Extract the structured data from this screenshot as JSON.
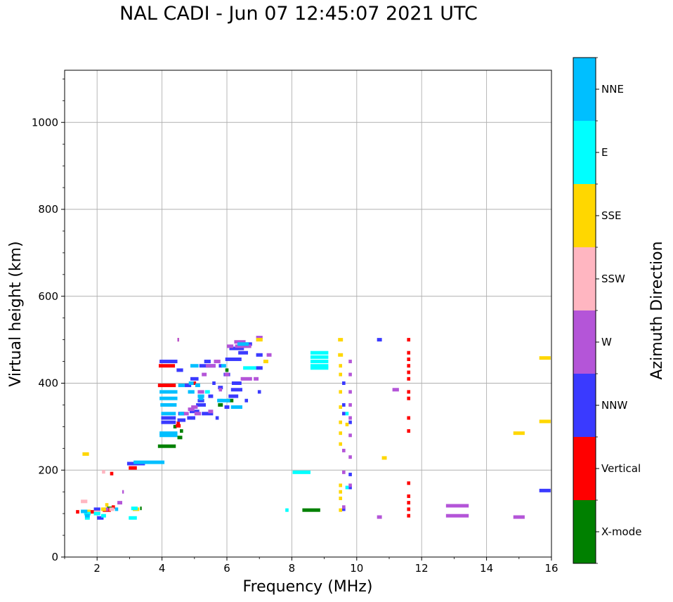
{
  "chart_data": {
    "type": "scatter",
    "title": "NAL CADI - Jun 07 12:45:07 2021 UTC",
    "xlabel": "Frequency (MHz)",
    "ylabel": "Virtual height (km)",
    "xlim": [
      1,
      16
    ],
    "ylim": [
      0,
      1120
    ],
    "xticks": [
      2,
      4,
      6,
      8,
      10,
      12,
      14,
      16
    ],
    "yticks": [
      0,
      200,
      400,
      600,
      800,
      1000
    ],
    "grid": true,
    "colorbar": {
      "label": "Azimuth Direction",
      "categories": [
        {
          "name": "X-mode",
          "color": "#008000"
        },
        {
          "name": "Vertical",
          "color": "#ff0000"
        },
        {
          "name": "NNW",
          "color": "#3a3aff"
        },
        {
          "name": "W",
          "color": "#b455d8"
        },
        {
          "name": "SSW",
          "color": "#ffb6c1"
        },
        {
          "name": "SSE",
          "color": "#ffd700"
        },
        {
          "name": "E",
          "color": "#00ffff"
        },
        {
          "name": "NNE",
          "color": "#00bfff"
        }
      ]
    },
    "series": [
      {
        "name": "X-mode",
        "points": [
          [
            3.35,
            112,
            0.05
          ],
          [
            4.15,
            255,
            0.55
          ],
          [
            4.55,
            275,
            0.15
          ],
          [
            4.6,
            290,
            0.1
          ],
          [
            2.4,
            112,
            0.2
          ],
          [
            8.6,
            108,
            0.55
          ],
          [
            6.1,
            360,
            0.2
          ],
          [
            5.8,
            350,
            0.15
          ],
          [
            4.4,
            300,
            0.1
          ],
          [
            6.0,
            430,
            0.1
          ]
        ]
      },
      {
        "name": "Vertical",
        "points": [
          [
            3.1,
            205,
            0.25
          ],
          [
            1.4,
            104,
            0.1
          ],
          [
            1.9,
            104,
            0.25
          ],
          [
            2.3,
            108,
            0.25
          ],
          [
            2.5,
            115,
            0.1
          ],
          [
            2.45,
            192,
            0.1
          ],
          [
            4.5,
            302,
            0.15
          ],
          [
            4.5,
            308,
            0.1
          ],
          [
            4.15,
            395,
            0.55
          ],
          [
            4.15,
            440,
            0.5
          ],
          [
            11.6,
            500,
            0.1
          ],
          [
            11.6,
            470,
            0.1
          ],
          [
            11.6,
            455,
            0.1
          ],
          [
            11.6,
            440,
            0.1
          ],
          [
            11.6,
            425,
            0.1
          ],
          [
            11.6,
            410,
            0.1
          ],
          [
            11.6,
            380,
            0.1
          ],
          [
            11.6,
            365,
            0.1
          ],
          [
            11.6,
            320,
            0.1
          ],
          [
            11.6,
            290,
            0.1
          ],
          [
            11.6,
            170,
            0.1
          ],
          [
            11.6,
            140,
            0.1
          ],
          [
            11.6,
            125,
            0.1
          ],
          [
            11.6,
            110,
            0.1
          ],
          [
            11.6,
            95,
            0.1
          ],
          [
            4.5,
            500,
            0.05
          ],
          [
            5.0,
            400,
            0.1
          ]
        ]
      },
      {
        "name": "NNW",
        "points": [
          [
            6.6,
            490,
            0.35
          ],
          [
            6.3,
            480,
            0.45
          ],
          [
            6.5,
            470,
            0.3
          ],
          [
            6.2,
            455,
            0.5
          ],
          [
            5.4,
            440,
            0.5
          ],
          [
            6.0,
            420,
            0.2
          ],
          [
            6.3,
            400,
            0.3
          ],
          [
            6.3,
            385,
            0.35
          ],
          [
            6.2,
            370,
            0.3
          ],
          [
            5.0,
            410,
            0.25
          ],
          [
            4.8,
            395,
            0.2
          ],
          [
            5.6,
            400,
            0.1
          ],
          [
            5.8,
            390,
            0.15
          ],
          [
            5.2,
            350,
            0.3
          ],
          [
            5.0,
            335,
            0.3
          ],
          [
            5.4,
            330,
            0.35
          ],
          [
            4.9,
            320,
            0.25
          ],
          [
            4.6,
            330,
            0.2
          ],
          [
            4.6,
            315,
            0.25
          ],
          [
            5.7,
            320,
            0.1
          ],
          [
            4.2,
            320,
            0.45
          ],
          [
            4.2,
            310,
            0.45
          ],
          [
            5.4,
            450,
            0.2
          ],
          [
            5.8,
            440,
            0.1
          ],
          [
            7.0,
            465,
            0.2
          ],
          [
            7.0,
            435,
            0.2
          ],
          [
            7.0,
            380,
            0.1
          ],
          [
            6.6,
            360,
            0.1
          ],
          [
            4.55,
            430,
            0.2
          ],
          [
            4.2,
            450,
            0.55
          ],
          [
            3.2,
            215,
            0.55
          ],
          [
            2.1,
            90,
            0.2
          ],
          [
            2.0,
            110,
            0.2
          ],
          [
            9.6,
            400,
            0.1
          ],
          [
            9.6,
            350,
            0.1
          ],
          [
            9.6,
            330,
            0.1
          ],
          [
            9.8,
            310,
            0.1
          ],
          [
            9.8,
            190,
            0.1
          ],
          [
            9.8,
            160,
            0.1
          ],
          [
            9.6,
            110,
            0.1
          ],
          [
            10.7,
            500,
            0.15
          ],
          [
            15.8,
            153,
            0.35
          ],
          [
            6.0,
            345,
            0.15
          ],
          [
            5.2,
            360,
            0.2
          ],
          [
            5.5,
            370,
            0.15
          ]
        ]
      },
      {
        "name": "W",
        "points": [
          [
            6.5,
            485,
            0.5
          ],
          [
            6.4,
            495,
            0.35
          ],
          [
            6.1,
            485,
            0.2
          ],
          [
            5.7,
            450,
            0.2
          ],
          [
            5.5,
            440,
            0.3
          ],
          [
            6.0,
            420,
            0.15
          ],
          [
            6.6,
            410,
            0.35
          ],
          [
            6.9,
            410,
            0.15
          ],
          [
            7.0,
            505,
            0.2
          ],
          [
            7.3,
            465,
            0.15
          ],
          [
            5.2,
            380,
            0.2
          ],
          [
            5.0,
            345,
            0.2
          ],
          [
            4.7,
            330,
            0.25
          ],
          [
            5.1,
            330,
            0.2
          ],
          [
            4.9,
            340,
            0.2
          ],
          [
            5.5,
            335,
            0.15
          ],
          [
            5.8,
            385,
            0.1
          ],
          [
            5.3,
            420,
            0.15
          ],
          [
            9.8,
            450,
            0.1
          ],
          [
            9.8,
            420,
            0.1
          ],
          [
            9.8,
            380,
            0.1
          ],
          [
            9.8,
            350,
            0.1
          ],
          [
            9.8,
            320,
            0.1
          ],
          [
            9.8,
            280,
            0.1
          ],
          [
            9.6,
            245,
            0.1
          ],
          [
            9.8,
            230,
            0.1
          ],
          [
            9.6,
            195,
            0.1
          ],
          [
            9.8,
            165,
            0.1
          ],
          [
            9.6,
            115,
            0.1
          ],
          [
            11.2,
            385,
            0.2
          ],
          [
            13.1,
            118,
            0.7
          ],
          [
            13.1,
            95,
            0.7
          ],
          [
            15.0,
            92,
            0.35
          ],
          [
            10.7,
            92,
            0.15
          ],
          [
            2.7,
            125,
            0.15
          ],
          [
            2.25,
            110,
            0.2
          ],
          [
            2.8,
            150,
            0.05
          ],
          [
            4.5,
            500,
            0.05
          ]
        ]
      },
      {
        "name": "SSW",
        "points": [
          [
            1.6,
            128,
            0.2
          ],
          [
            2.2,
            196,
            0.1
          ],
          [
            2.45,
            110,
            0.15
          ],
          [
            2.0,
            103,
            0.2
          ]
        ]
      },
      {
        "name": "SSE",
        "points": [
          [
            1.65,
            237,
            0.2
          ],
          [
            1.7,
            105,
            0.2
          ],
          [
            2.2,
            110,
            0.15
          ],
          [
            3.2,
            110,
            0.2
          ],
          [
            2.3,
            120,
            0.1
          ],
          [
            7.2,
            450,
            0.15
          ],
          [
            7.0,
            500,
            0.2
          ],
          [
            9.5,
            500,
            0.15
          ],
          [
            9.5,
            465,
            0.15
          ],
          [
            9.5,
            440,
            0.1
          ],
          [
            9.5,
            420,
            0.1
          ],
          [
            9.5,
            380,
            0.1
          ],
          [
            9.5,
            345,
            0.1
          ],
          [
            9.5,
            310,
            0.1
          ],
          [
            9.5,
            285,
            0.1
          ],
          [
            9.5,
            260,
            0.1
          ],
          [
            9.5,
            165,
            0.1
          ],
          [
            9.5,
            150,
            0.1
          ],
          [
            9.5,
            135,
            0.1
          ],
          [
            9.5,
            108,
            0.1
          ],
          [
            9.7,
            305,
            0.1
          ],
          [
            10.85,
            228,
            0.15
          ],
          [
            15.0,
            285,
            0.35
          ],
          [
            15.8,
            458,
            0.35
          ],
          [
            15.8,
            312,
            0.35
          ]
        ]
      },
      {
        "name": "E",
        "points": [
          [
            8.85,
            470,
            0.55
          ],
          [
            8.85,
            460,
            0.55
          ],
          [
            8.85,
            450,
            0.55
          ],
          [
            8.85,
            440,
            0.55
          ],
          [
            8.85,
            435,
            0.55
          ],
          [
            8.3,
            195,
            0.55
          ],
          [
            7.85,
            108,
            0.1
          ],
          [
            3.1,
            90,
            0.25
          ],
          [
            1.7,
            100,
            0.2
          ],
          [
            1.7,
            90,
            0.15
          ],
          [
            2.0,
            100,
            0.2
          ],
          [
            2.2,
            95,
            0.15
          ],
          [
            5.8,
            360,
            0.15
          ],
          [
            5.4,
            380,
            0.15
          ],
          [
            6.7,
            435,
            0.4
          ],
          [
            9.7,
            330,
            0.1
          ],
          [
            9.7,
            160,
            0.1
          ],
          [
            3.15,
            112,
            0.2
          ]
        ]
      },
      {
        "name": "NNE",
        "points": [
          [
            3.6,
            218,
            0.95
          ],
          [
            4.2,
            380,
            0.55
          ],
          [
            4.2,
            365,
            0.55
          ],
          [
            4.2,
            350,
            0.5
          ],
          [
            4.2,
            330,
            0.45
          ],
          [
            4.2,
            285,
            0.55
          ],
          [
            4.2,
            280,
            0.55
          ],
          [
            4.6,
            395,
            0.2
          ],
          [
            4.9,
            380,
            0.2
          ],
          [
            5.1,
            395,
            0.15
          ],
          [
            5.2,
            370,
            0.2
          ],
          [
            5.9,
            360,
            0.4
          ],
          [
            6.3,
            345,
            0.35
          ],
          [
            6.5,
            490,
            0.35
          ],
          [
            4.6,
            330,
            0.15
          ],
          [
            4.9,
            400,
            0.15
          ],
          [
            5.0,
            440,
            0.25
          ],
          [
            1.6,
            105,
            0.2
          ],
          [
            1.7,
            95,
            0.15
          ],
          [
            2.6,
            110,
            0.1
          ],
          [
            5.9,
            440,
            0.15
          ],
          [
            5.2,
            365,
            0.15
          ]
        ]
      }
    ]
  }
}
